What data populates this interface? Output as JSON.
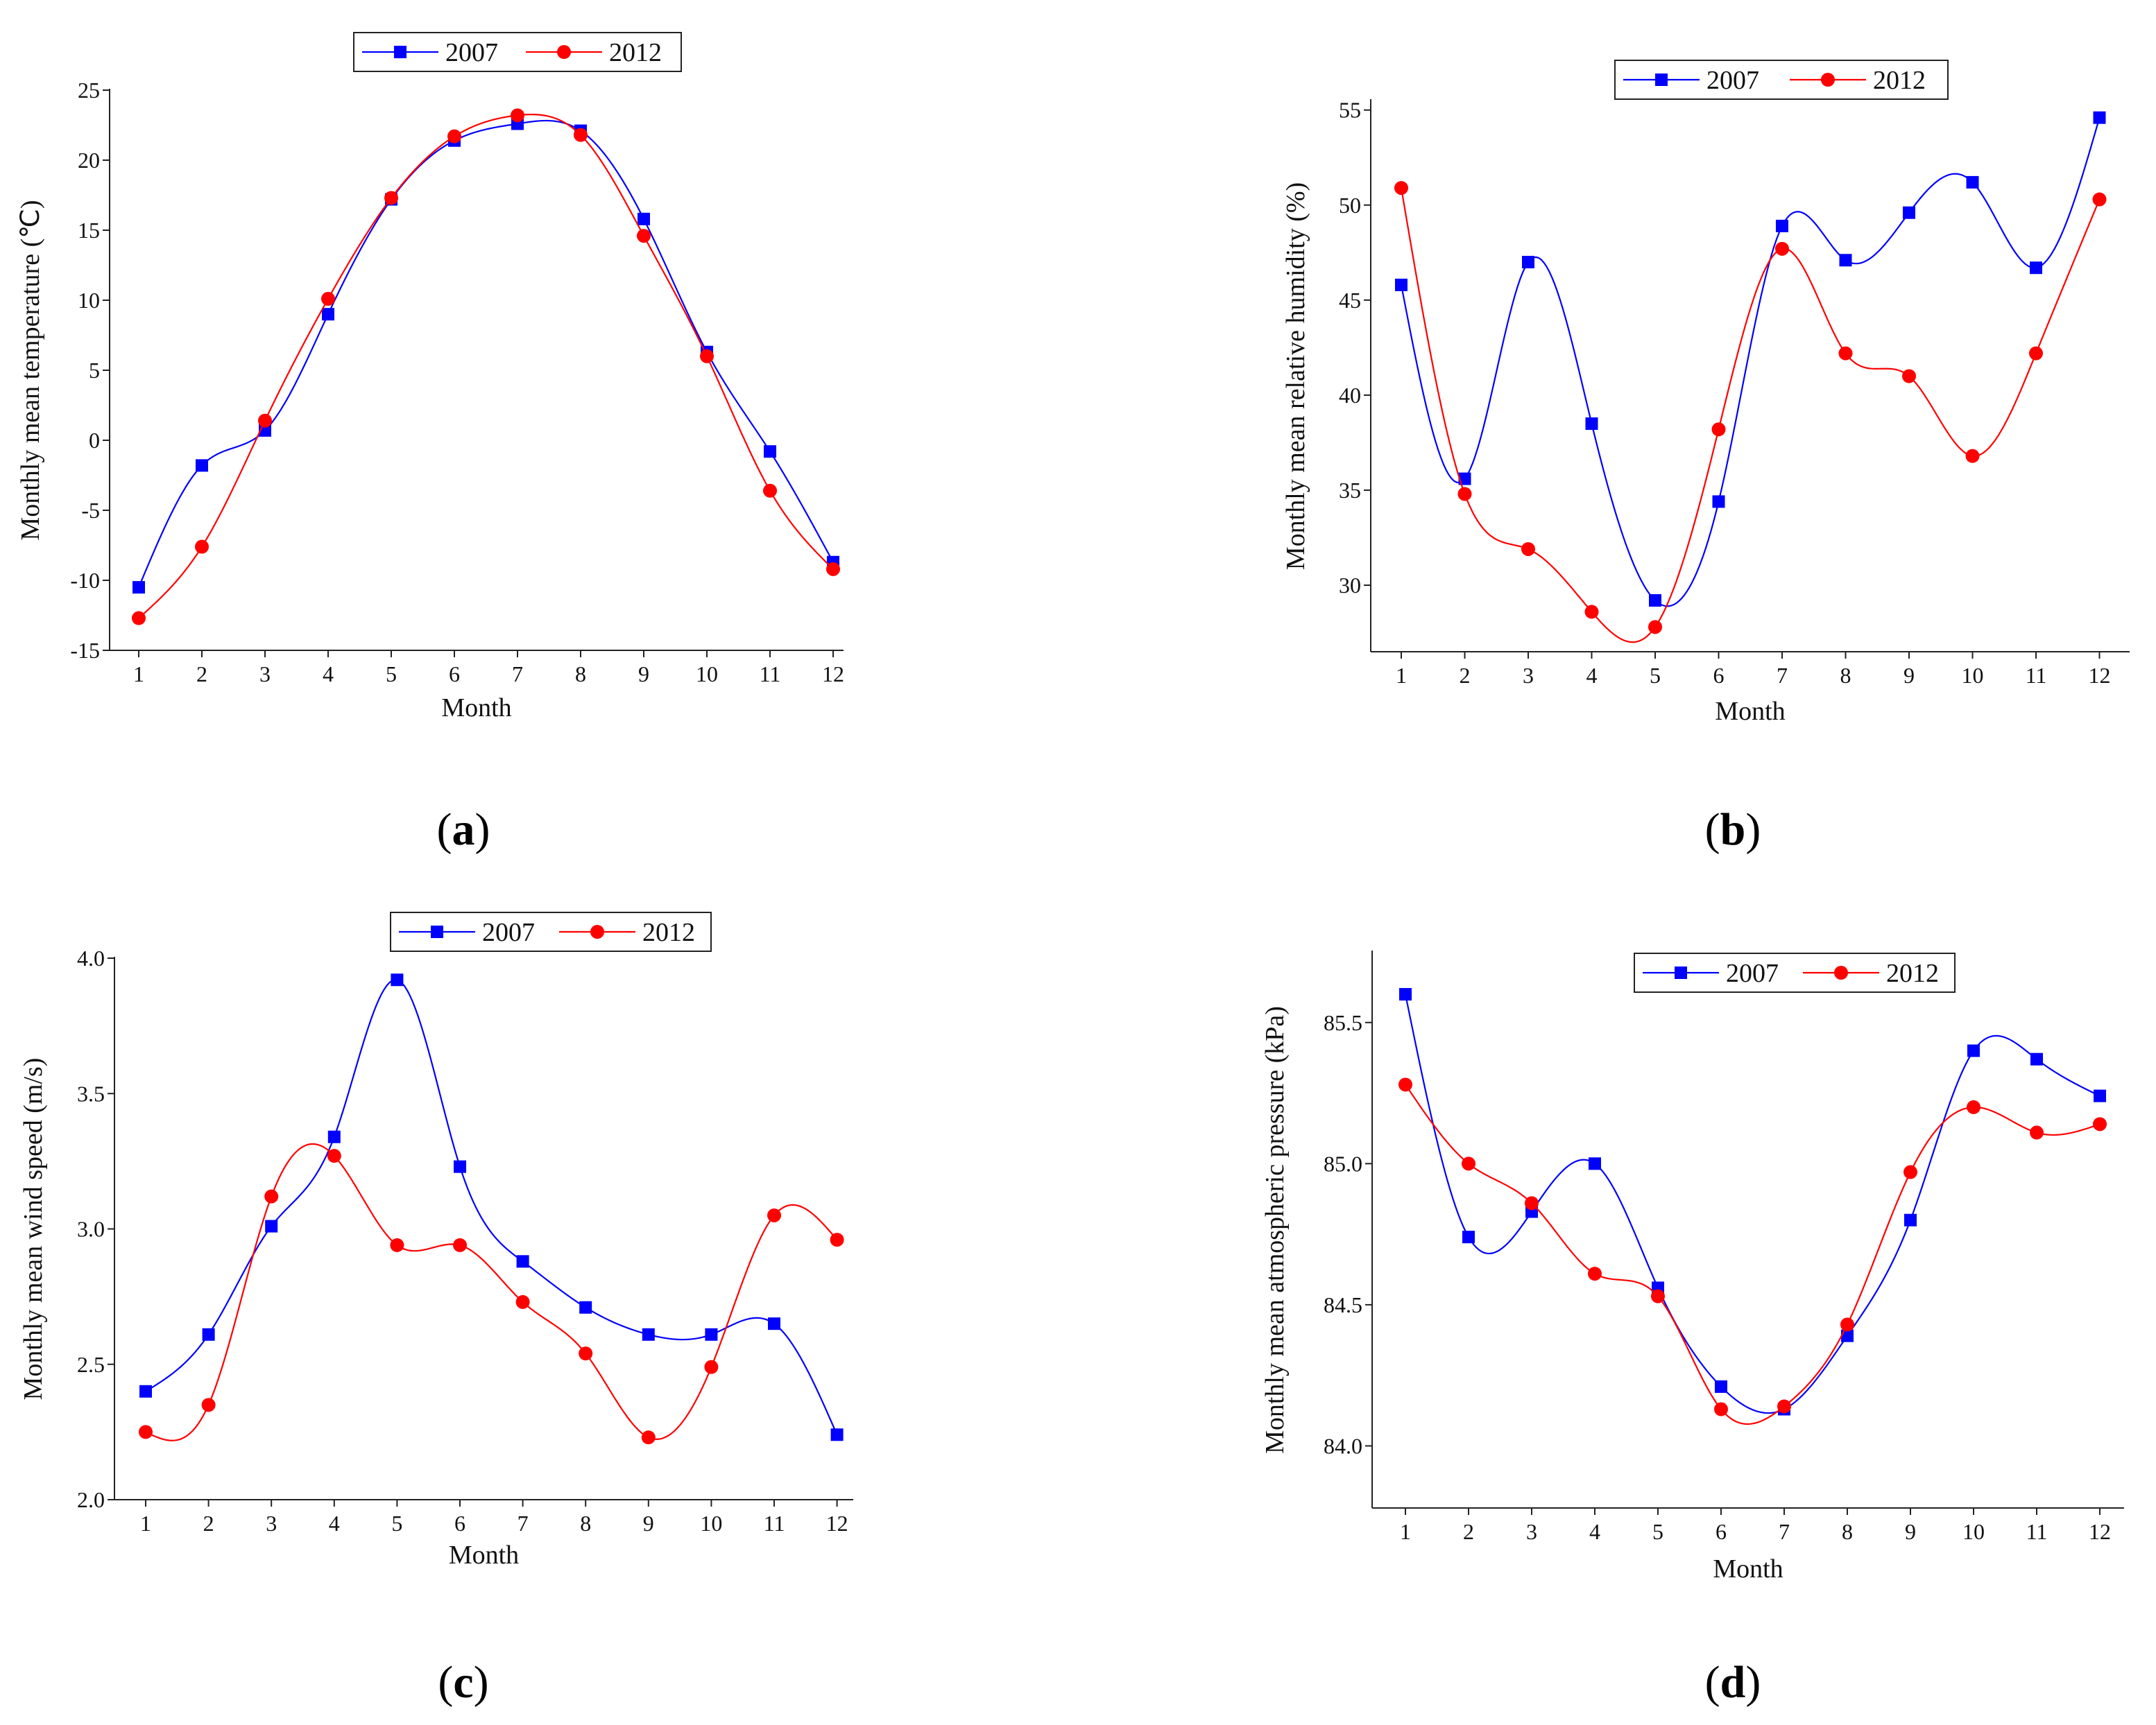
{
  "chart_data": [
    {
      "id": "a",
      "type": "line",
      "panel_label": "a",
      "title": "",
      "xlabel": "Month",
      "ylabel": "Monthly mean temperature (℃)",
      "categories": [
        1,
        2,
        3,
        4,
        5,
        6,
        7,
        8,
        9,
        10,
        11,
        12
      ],
      "ylim": [
        -15,
        25
      ],
      "yticks": [
        "-15",
        "-10",
        "-5",
        "0",
        "5",
        "10",
        "15",
        "20",
        "25"
      ],
      "legend_position": "top-center",
      "series": [
        {
          "name": "2007",
          "color": "#0000ff",
          "marker": "square",
          "values": [
            -10.5,
            -1.8,
            0.7,
            9.0,
            17.2,
            21.4,
            22.6,
            22.1,
            15.8,
            6.3,
            -0.8,
            -8.7
          ]
        },
        {
          "name": "2012",
          "color": "#ff0000",
          "marker": "circle",
          "values": [
            -12.7,
            -7.6,
            1.4,
            10.1,
            17.3,
            21.7,
            23.2,
            21.8,
            14.6,
            6.0,
            -3.6,
            -9.2
          ]
        }
      ]
    },
    {
      "id": "b",
      "type": "line",
      "panel_label": "b",
      "title": "",
      "xlabel": "Month",
      "ylabel": "Monthly mean relative humidity (%)",
      "categories": [
        1,
        2,
        3,
        4,
        5,
        6,
        7,
        8,
        9,
        10,
        11,
        12
      ],
      "ylim": [
        26.5,
        55.5
      ],
      "yticks": [
        "30",
        "35",
        "40",
        "45",
        "50",
        "55"
      ],
      "legend_position": "top-center",
      "series": [
        {
          "name": "2007",
          "color": "#0000ff",
          "marker": "square",
          "values": [
            45.8,
            35.6,
            47.0,
            38.5,
            29.2,
            34.4,
            48.9,
            47.1,
            49.6,
            51.2,
            46.7,
            54.6
          ]
        },
        {
          "name": "2012",
          "color": "#ff0000",
          "marker": "circle",
          "values": [
            50.9,
            34.8,
            31.9,
            28.6,
            27.8,
            38.2,
            47.7,
            42.2,
            41.0,
            36.8,
            42.2,
            50.3
          ]
        }
      ]
    },
    {
      "id": "c",
      "type": "line",
      "panel_label": "c",
      "title": "",
      "xlabel": "Month",
      "ylabel": "Monthly mean wind speed (m/s)",
      "categories": [
        1,
        2,
        3,
        4,
        5,
        6,
        7,
        8,
        9,
        10,
        11,
        12
      ],
      "ylim": [
        2.0,
        4.0
      ],
      "yticks": [
        "2.0",
        "2.5",
        "3.0",
        "3.5",
        "4.0"
      ],
      "legend_position": "top-center",
      "series": [
        {
          "name": "2007",
          "color": "#0000ff",
          "marker": "square",
          "values": [
            2.4,
            2.61,
            3.01,
            3.34,
            3.92,
            3.23,
            2.88,
            2.71,
            2.61,
            2.61,
            2.65,
            2.24
          ]
        },
        {
          "name": "2012",
          "color": "#ff0000",
          "marker": "circle",
          "values": [
            2.25,
            2.35,
            3.12,
            3.27,
            2.94,
            2.94,
            2.73,
            2.54,
            2.23,
            2.49,
            3.05,
            2.96
          ]
        }
      ]
    },
    {
      "id": "d",
      "type": "line",
      "panel_label": "d",
      "title": "",
      "xlabel": "Month",
      "ylabel": "Monthly mean atmospheric pressure (kPa)",
      "categories": [
        1,
        2,
        3,
        4,
        5,
        6,
        7,
        8,
        9,
        10,
        11,
        12
      ],
      "ylim": [
        83.78,
        85.75
      ],
      "yticks": [
        "84.0",
        "84.5",
        "85.0",
        "85.5"
      ],
      "legend_position": "top-center",
      "series": [
        {
          "name": "2007",
          "color": "#0000ff",
          "marker": "square",
          "values": [
            85.6,
            84.74,
            84.83,
            85.0,
            84.56,
            84.21,
            84.13,
            84.39,
            84.8,
            85.4,
            85.37,
            85.24
          ]
        },
        {
          "name": "2012",
          "color": "#ff0000",
          "marker": "circle",
          "values": [
            85.28,
            85.0,
            84.86,
            84.61,
            84.53,
            84.13,
            84.14,
            84.43,
            84.97,
            85.2,
            85.11,
            85.14
          ]
        }
      ]
    }
  ]
}
